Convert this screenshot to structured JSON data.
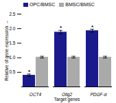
{
  "chart_data": {
    "type": "bar",
    "categories": [
      "OCT4",
      "Olig2",
      "PDGF-α"
    ],
    "series": [
      {
        "name": "OPC/BMSC",
        "color": "#1a1a8c",
        "values": [
          0.4,
          1.88,
          1.93
        ],
        "errors": [
          0.04,
          0.06,
          0.05
        ]
      },
      {
        "name": "BMSC/BMSC",
        "color": "#aaaaaa",
        "values": [
          1.02,
          1.02,
          1.02
        ],
        "errors": [
          0.03,
          0.03,
          0.03
        ]
      }
    ],
    "xlabel": "Target genes",
    "ylabel": "Relative of gene expression",
    "ylim": [
      0,
      2.5
    ],
    "yticks": [
      0.5,
      {
        "value": 1.0,
        "label": "1.0"
      },
      1.5,
      {
        "value": 2.0,
        "label": "2.0"
      },
      2.5
    ],
    "legend": "upper left",
    "grid": false,
    "annotations": [
      {
        "category": "OCT4",
        "series": "OPC/BMSC",
        "text": "*"
      },
      {
        "category": "Olig2",
        "series": "OPC/BMSC",
        "text": "*"
      },
      {
        "category": "PDGF-α",
        "series": "OPC/BMSC",
        "text": "*"
      }
    ]
  }
}
